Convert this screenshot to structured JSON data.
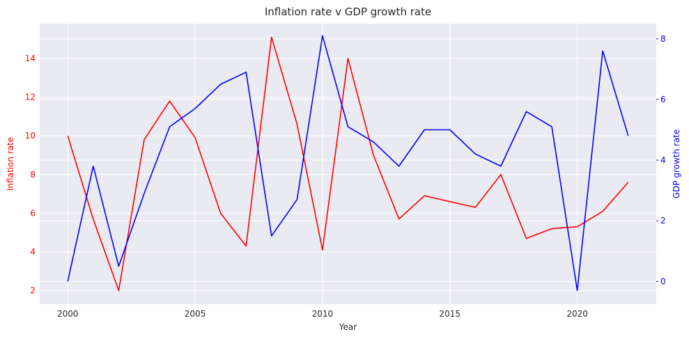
{
  "chart_data": {
    "type": "line",
    "title": "Inflation rate v GDP growth rate",
    "xlabel": "Year",
    "ylabel_left": "Inflation rate",
    "ylabel_right": "GDP growth rate",
    "x": [
      2000,
      2001,
      2002,
      2003,
      2004,
      2005,
      2006,
      2007,
      2008,
      2009,
      2010,
      2011,
      2012,
      2013,
      2014,
      2015,
      2016,
      2017,
      2018,
      2019,
      2020,
      2021,
      2022
    ],
    "xlim": [
      1998.9,
      2023.1
    ],
    "x_ticks": [
      2000,
      2005,
      2010,
      2015,
      2020
    ],
    "series": [
      {
        "name": "Inflation rate",
        "axis": "left",
        "color": "#ff0000",
        "values": [
          10.0,
          5.7,
          2.0,
          9.8,
          11.8,
          9.9,
          6.0,
          4.3,
          15.1,
          10.6,
          4.1,
          14.0,
          9.0,
          5.7,
          6.9,
          6.6,
          6.3,
          8.0,
          4.7,
          5.2,
          5.3,
          6.1,
          7.6
        ]
      },
      {
        "name": "GDP growth rate",
        "axis": "right",
        "color": "#0000ff",
        "values": [
          0.0,
          3.8,
          0.5,
          2.9,
          5.1,
          5.7,
          6.5,
          6.9,
          1.5,
          2.7,
          8.1,
          5.1,
          4.6,
          3.8,
          5.0,
          5.0,
          4.2,
          3.8,
          5.6,
          5.1,
          -0.3,
          7.6,
          4.8
        ]
      }
    ],
    "ylim_left": [
      1.3,
      15.8
    ],
    "ylim_right": [
      -0.75,
      8.5
    ],
    "y_ticks_left": [
      2,
      4,
      6,
      8,
      10,
      12,
      14
    ],
    "y_ticks_right": [
      0,
      2,
      4,
      6,
      8
    ],
    "grid": true,
    "background": "#eaeaf2",
    "left_axis_color": "#ff0000",
    "right_axis_color": "#0000ff"
  }
}
